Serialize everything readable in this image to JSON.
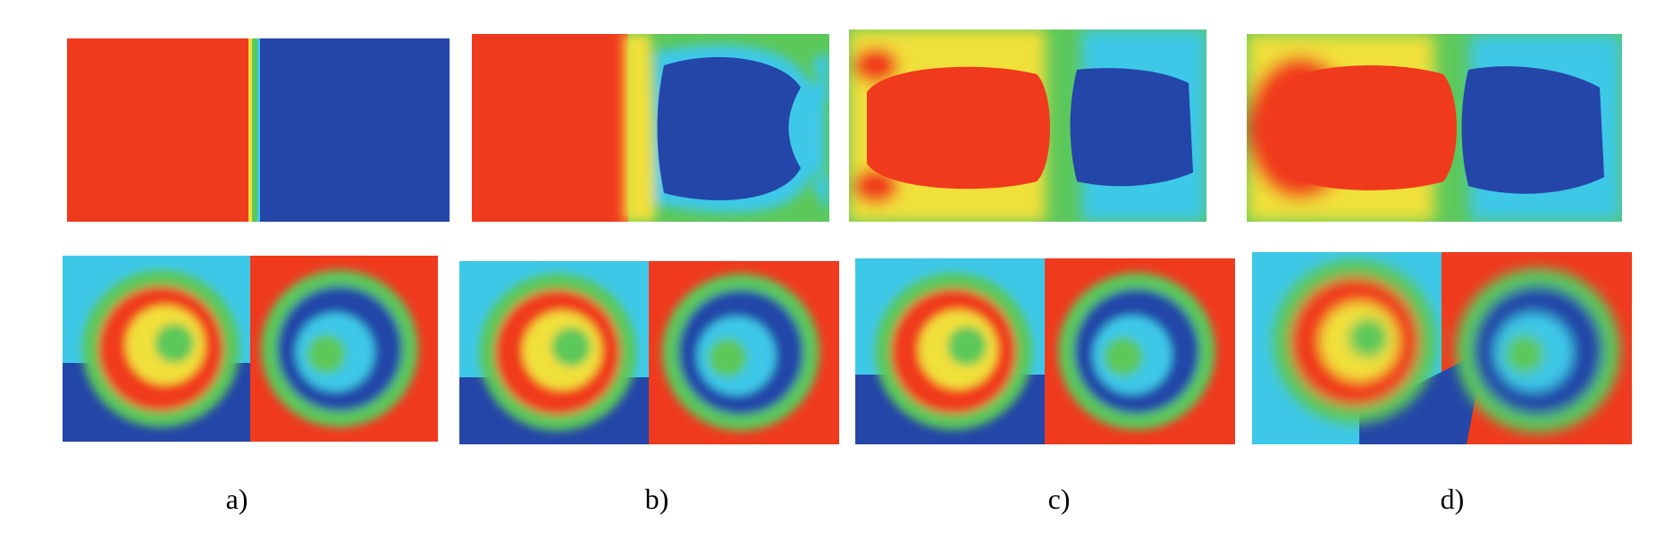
{
  "figure": {
    "captions": [
      "a)",
      "b)",
      "c)",
      "d)"
    ],
    "rows": [
      "top",
      "bottom"
    ],
    "colormap": [
      "#2446a8",
      "#3ec8e8",
      "#5cc85a",
      "#f0e03a",
      "#f03a1e"
    ]
  }
}
